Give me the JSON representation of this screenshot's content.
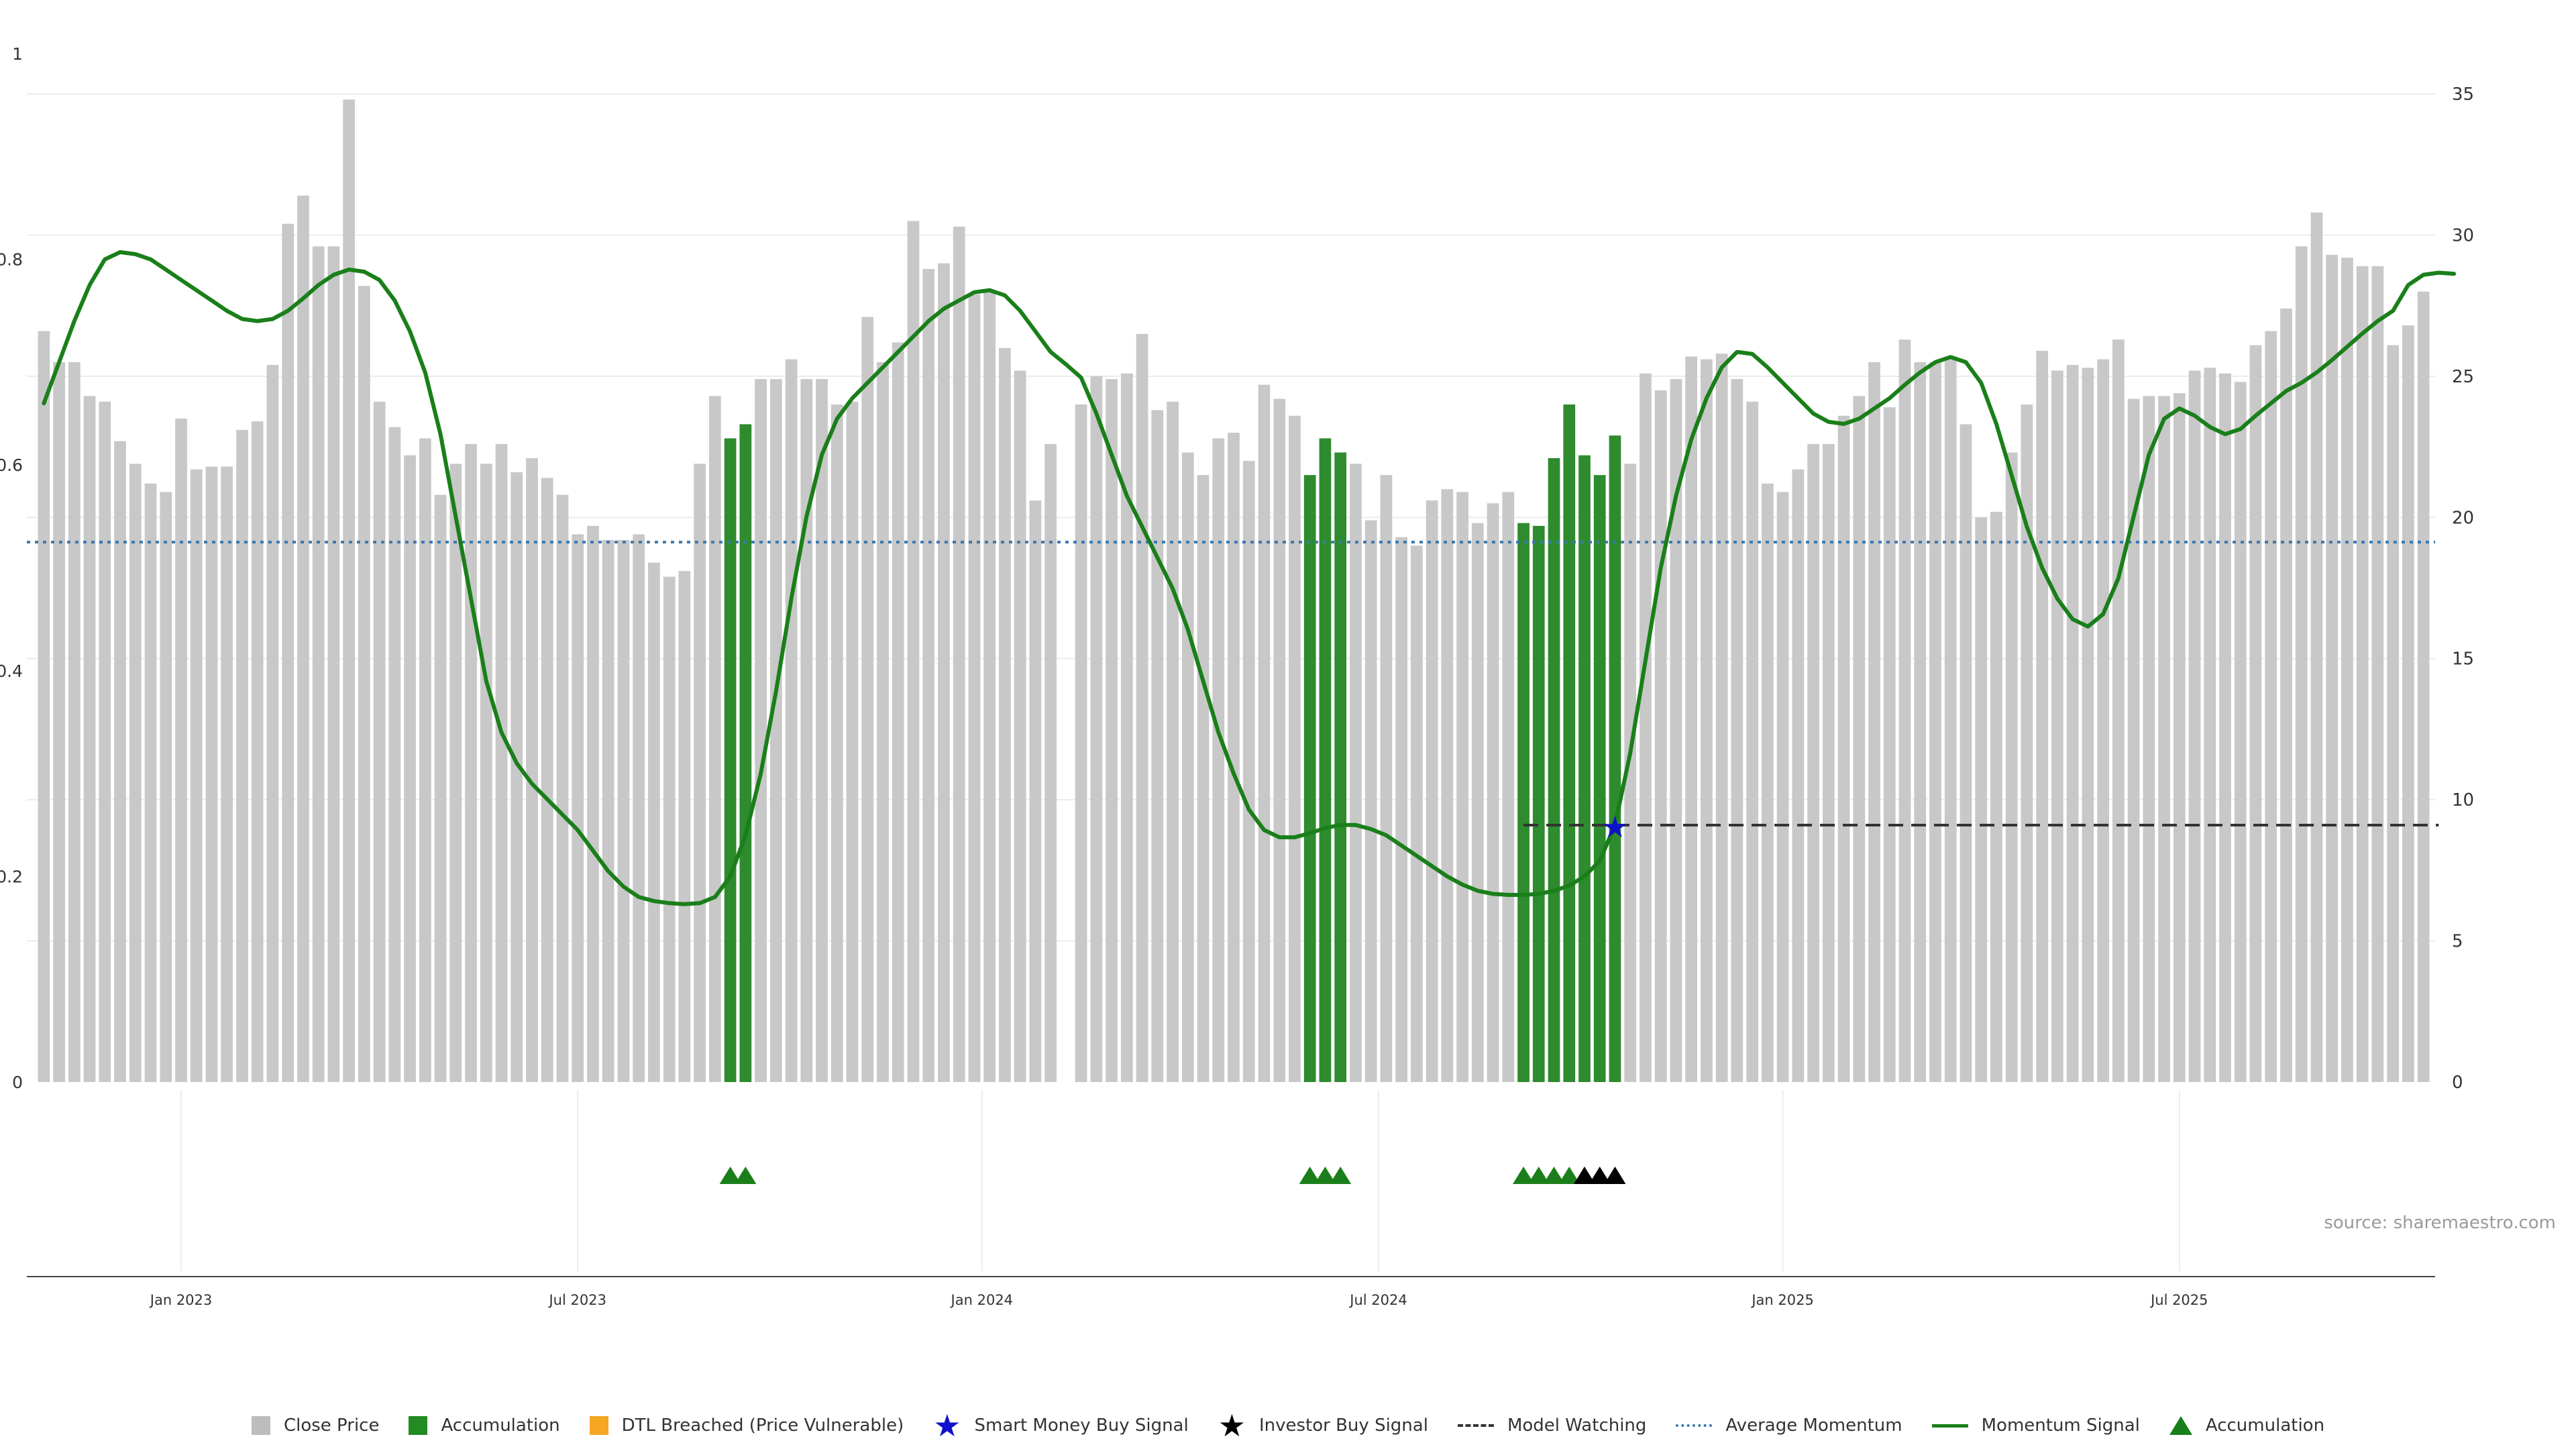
{
  "chart_data": {
    "type": "bar+line",
    "title": "",
    "source": "source: sharemaestro.com",
    "left_axis": {
      "ticks": [
        "0",
        "0.2",
        "0.4",
        "0.6",
        "0.8",
        "1"
      ],
      "range": [
        0,
        1
      ]
    },
    "right_axis": {
      "ticks": [
        "0",
        "5",
        "10",
        "15",
        "20",
        "25",
        "30",
        "35"
      ],
      "range": [
        0,
        35
      ]
    },
    "x_axis": {
      "labels": [
        {
          "label": "Jan 2023",
          "week": 9
        },
        {
          "label": "Jul 2023",
          "week": 35
        },
        {
          "label": "Jan 2024",
          "week": 61.5
        },
        {
          "label": "Jul 2024",
          "week": 87.5
        },
        {
          "label": "Jan 2025",
          "week": 114
        },
        {
          "label": "Jul 2025",
          "week": 140
        }
      ]
    },
    "close_price": [
      26.6,
      25.5,
      25.5,
      24.3,
      24.1,
      22.7,
      21.9,
      21.2,
      20.9,
      23.5,
      21.7,
      21.8,
      21.8,
      23.1,
      23.4,
      25.4,
      30.4,
      31.4,
      29.6,
      29.6,
      34.8,
      28.2,
      24.1,
      23.2,
      22.2,
      22.8,
      20.8,
      21.9,
      22.6,
      21.9,
      22.6,
      21.6,
      22.1,
      21.4,
      20.8,
      19.4,
      19.7,
      19.2,
      19.2,
      19.4,
      18.4,
      17.9,
      18.1,
      21.9,
      24.3,
      22.8,
      23.3,
      24.9,
      24.9,
      25.6,
      24.9,
      24.9,
      24.0,
      24.1,
      27.1,
      25.5,
      26.2,
      30.5,
      28.8,
      29.0,
      30.3,
      27.9,
      28.0,
      26.0,
      25.2,
      20.6,
      22.6,
      0,
      24.0,
      25.0,
      24.9,
      25.1,
      26.5,
      23.8,
      24.1,
      22.3,
      21.5,
      22.8,
      23.0,
      22.0,
      24.7,
      24.2,
      23.6,
      21.5,
      22.8,
      22.3,
      21.9,
      19.9,
      21.5,
      19.3,
      19.0,
      20.6,
      21.0,
      20.9,
      19.8,
      20.5,
      20.9,
      19.8,
      19.7,
      22.1,
      24.0,
      22.2,
      21.5,
      22.9,
      21.9,
      25.1,
      24.5,
      24.9,
      25.7,
      25.6,
      25.8,
      24.9,
      24.1,
      21.2,
      20.9,
      21.7,
      22.6,
      22.6,
      23.6,
      24.3,
      25.5,
      23.9,
      26.3,
      25.5,
      25.5,
      25.7,
      23.3,
      20.0,
      20.2,
      22.3,
      24.0,
      25.9,
      25.2,
      25.4,
      25.3,
      25.6,
      26.3,
      24.2,
      24.3,
      24.3,
      24.4,
      25.2,
      25.3,
      25.1,
      24.8,
      26.1,
      26.6,
      27.4,
      29.6,
      30.8,
      29.3,
      29.2,
      28.9,
      28.9,
      26.1,
      26.8,
      28.0
    ],
    "accumulation_weeks": [
      45,
      46,
      83,
      84,
      85,
      97,
      98,
      99,
      100,
      101,
      102,
      103
    ],
    "accumulation_signal_weeks": [
      45,
      46,
      83,
      84,
      85,
      97,
      98,
      99,
      100
    ],
    "investor_buy_signal_weeks": [
      101,
      102,
      103
    ],
    "smart_money_buy_signal": {
      "week": 103,
      "value": 9.0
    },
    "average_momentum": 0.525,
    "model_watching": {
      "from_week": 97,
      "to_week": 157,
      "value": 9.1
    },
    "momentum_signal": [
      0.66,
      0.7,
      0.74,
      0.775,
      0.8,
      0.807,
      0.805,
      0.8,
      0.79,
      0.78,
      0.77,
      0.76,
      0.75,
      0.742,
      0.74,
      0.742,
      0.75,
      0.762,
      0.775,
      0.785,
      0.79,
      0.788,
      0.78,
      0.76,
      0.73,
      0.69,
      0.63,
      0.55,
      0.47,
      0.39,
      0.34,
      0.31,
      0.29,
      0.275,
      0.26,
      0.245,
      0.225,
      0.205,
      0.19,
      0.18,
      0.176,
      0.174,
      0.173,
      0.174,
      0.18,
      0.2,
      0.24,
      0.3,
      0.38,
      0.47,
      0.55,
      0.61,
      0.645,
      0.665,
      0.68,
      0.695,
      0.71,
      0.725,
      0.74,
      0.752,
      0.76,
      0.768,
      0.77,
      0.765,
      0.75,
      0.73,
      0.71,
      0.698,
      0.685,
      0.65,
      0.61,
      0.57,
      0.54,
      0.51,
      0.48,
      0.44,
      0.39,
      0.34,
      0.3,
      0.265,
      0.245,
      0.238,
      0.238,
      0.242,
      0.247,
      0.25,
      0.25,
      0.246,
      0.24,
      0.23,
      0.22,
      0.21,
      0.2,
      0.192,
      0.186,
      0.183,
      0.182,
      0.182,
      0.183,
      0.186,
      0.191,
      0.2,
      0.215,
      0.25,
      0.32,
      0.41,
      0.5,
      0.57,
      0.625,
      0.665,
      0.695,
      0.71,
      0.708,
      0.695,
      0.68,
      0.665,
      0.65,
      0.642,
      0.64,
      0.645,
      0.655,
      0.665,
      0.678,
      0.69,
      0.7,
      0.705,
      0.7,
      0.68,
      0.64,
      0.59,
      0.54,
      0.5,
      0.47,
      0.45,
      0.443,
      0.455,
      0.49,
      0.55,
      0.61,
      0.645,
      0.655,
      0.648,
      0.637,
      0.63,
      0.635,
      0.648,
      0.66,
      0.672,
      0.68,
      0.69,
      0.702,
      0.715,
      0.728,
      0.74,
      0.75,
      0.775,
      0.785,
      0.787,
      0.786
    ]
  },
  "legend": [
    {
      "label": "Close Price",
      "kind": "square",
      "color": "#bdbdbd"
    },
    {
      "label": "Accumulation",
      "kind": "square",
      "color": "#228b22"
    },
    {
      "label": "DTL Breached (Price Vulnerable)",
      "kind": "square",
      "color": "#f5a623"
    },
    {
      "label": "Smart Money Buy Signal",
      "kind": "star",
      "color": "#1010cc"
    },
    {
      "label": "Investor Buy Signal",
      "kind": "star",
      "color": "#000000"
    },
    {
      "label": "Model Watching",
      "kind": "dash",
      "color": "#333333"
    },
    {
      "label": "Average Momentum",
      "kind": "dot",
      "color": "#3a78b0"
    },
    {
      "label": "Momentum Signal",
      "kind": "line",
      "color": "#1a7f1a"
    },
    {
      "label": "Accumulation",
      "kind": "triangle",
      "color": "#1a7f1a"
    }
  ],
  "colors": {
    "close": "#c8c8c8",
    "accum": "#2e8b2e",
    "momentum": "#1a7f1a",
    "avg": "#3a78b0",
    "grid": "#ececec"
  }
}
